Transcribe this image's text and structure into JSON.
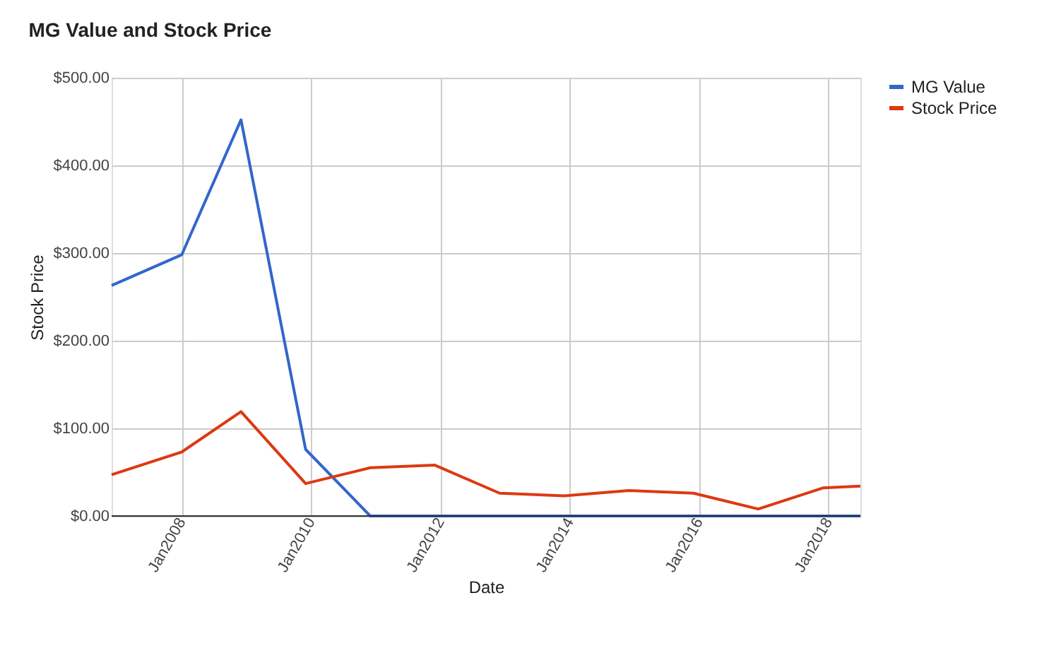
{
  "chart_data": {
    "type": "line",
    "title": "MG Value and Stock Price",
    "xlabel": "Date",
    "ylabel": "Stock Price",
    "x": [
      "2006-12",
      "2008-01",
      "2008-12",
      "2009-12",
      "2010-12",
      "2011-12",
      "2012-12",
      "2013-12",
      "2014-12",
      "2015-12",
      "2016-12",
      "2017-12",
      "2018-07"
    ],
    "series": [
      {
        "name": "MG Value",
        "color": "#3366cc",
        "values": [
          263,
          298,
          452,
          76,
          0,
          0,
          0,
          0,
          0,
          0,
          0,
          0,
          0
        ]
      },
      {
        "name": "Stock Price",
        "color": "#dc3912",
        "values": [
          47,
          73,
          119,
          37,
          55,
          58,
          26,
          23,
          29,
          26,
          8,
          32,
          34
        ]
      }
    ],
    "xlim": [
      "2006-12",
      "2018-07"
    ],
    "xticks": [
      {
        "value": "2008-01",
        "label": "Jan2008"
      },
      {
        "value": "2010-01",
        "label": "Jan2010"
      },
      {
        "value": "2012-01",
        "label": "Jan2012"
      },
      {
        "value": "2014-01",
        "label": "Jan2014"
      },
      {
        "value": "2016-01",
        "label": "Jan2016"
      },
      {
        "value": "2018-01",
        "label": "Jan2018"
      }
    ],
    "ylim": [
      0,
      500
    ],
    "yticks": [
      {
        "value": 0,
        "label": "$0.00"
      },
      {
        "value": 100,
        "label": "$100.00"
      },
      {
        "value": 200,
        "label": "$200.00"
      },
      {
        "value": 300,
        "label": "$300.00"
      },
      {
        "value": 400,
        "label": "$400.00"
      },
      {
        "value": 500,
        "label": "$500.00"
      }
    ],
    "grid": true,
    "legend": "top right",
    "marker": "none",
    "line_style": "solid"
  }
}
